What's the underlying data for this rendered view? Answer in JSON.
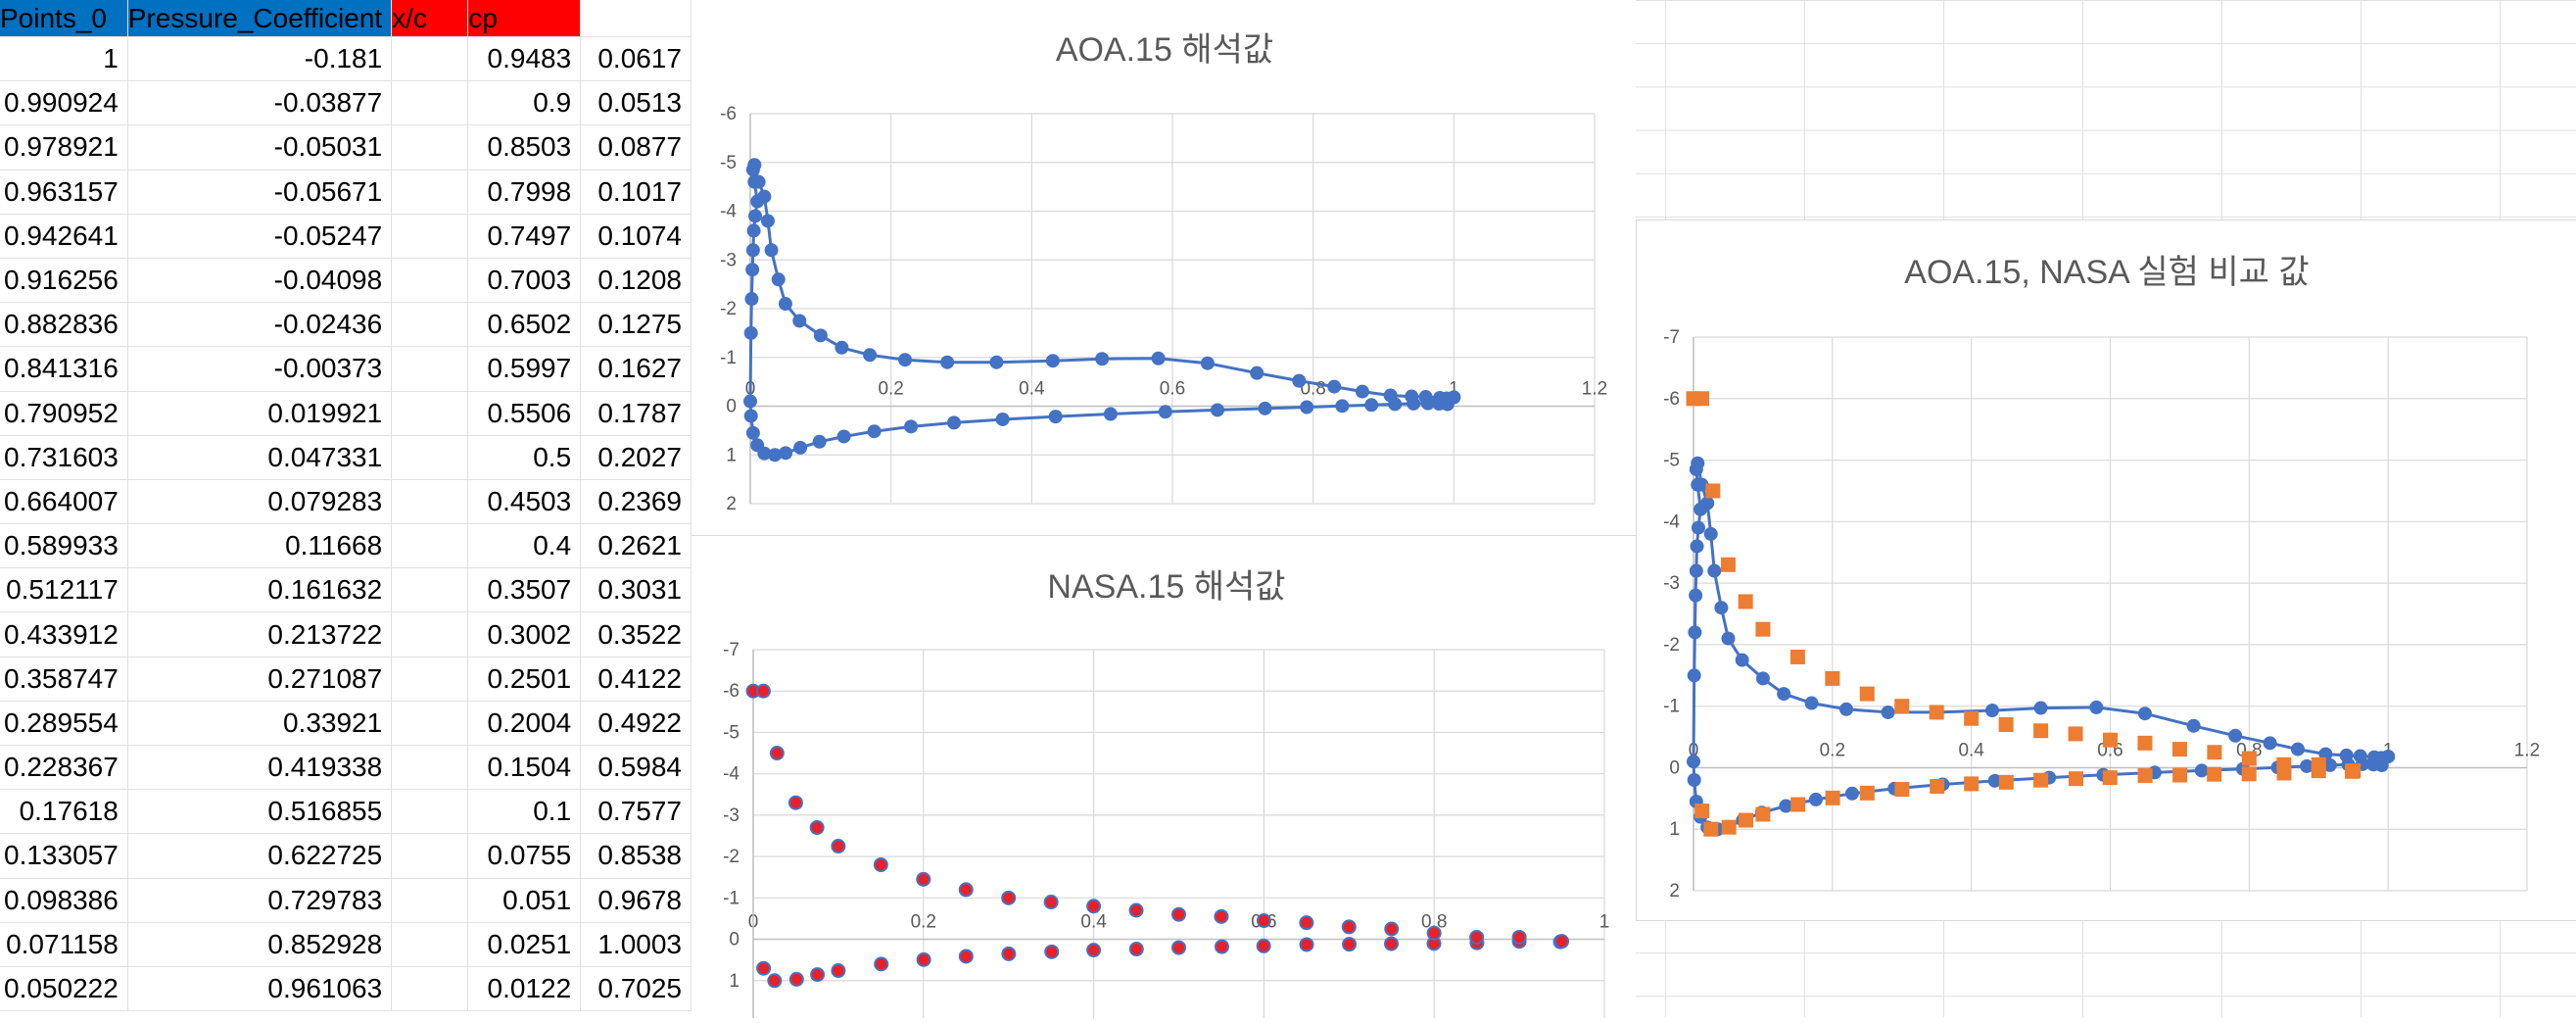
{
  "sheet": {
    "headers": [
      "Points_0",
      "Pressure_Coefficient",
      "x/c",
      "cp"
    ],
    "rows": [
      [
        "1",
        "-0.181",
        "0.9483",
        "0.0617"
      ],
      [
        "0.990924",
        "-0.03877",
        "0.9",
        "0.0513"
      ],
      [
        "0.978921",
        "-0.05031",
        "0.8503",
        "0.0877"
      ],
      [
        "0.963157",
        "-0.05671",
        "0.7998",
        "0.1017"
      ],
      [
        "0.942641",
        "-0.05247",
        "0.7497",
        "0.1074"
      ],
      [
        "0.916256",
        "-0.04098",
        "0.7003",
        "0.1208"
      ],
      [
        "0.882836",
        "-0.02436",
        "0.6502",
        "0.1275"
      ],
      [
        "0.841316",
        "-0.00373",
        "0.5997",
        "0.1627"
      ],
      [
        "0.790952",
        "0.019921",
        "0.5506",
        "0.1787"
      ],
      [
        "0.731603",
        "0.047331",
        "0.5",
        "0.2027"
      ],
      [
        "0.664007",
        "0.079283",
        "0.4503",
        "0.2369"
      ],
      [
        "0.589933",
        "0.11668",
        "0.4",
        "0.2621"
      ],
      [
        "0.512117",
        "0.161632",
        "0.3507",
        "0.3031"
      ],
      [
        "0.433912",
        "0.213722",
        "0.3002",
        "0.3522"
      ],
      [
        "0.358747",
        "0.271087",
        "0.2501",
        "0.4122"
      ],
      [
        "0.289554",
        "0.33921",
        "0.2004",
        "0.4922"
      ],
      [
        "0.228367",
        "0.419338",
        "0.1504",
        "0.5984"
      ],
      [
        "0.17618",
        "0.516855",
        "0.1",
        "0.7577"
      ],
      [
        "0.133057",
        "0.622725",
        "0.0755",
        "0.8538"
      ],
      [
        "0.098386",
        "0.729783",
        "0.051",
        "0.9678"
      ],
      [
        "0.071158",
        "0.852928",
        "0.0251",
        "1.0003"
      ],
      [
        "0.050222",
        "0.961063",
        "0.0122",
        "0.7025"
      ]
    ]
  },
  "colors": {
    "series_blue": "#4472c4",
    "series_orange": "#ed7d31",
    "nasa_marker_fill": "#e8202a",
    "header_blue": "#0070c0",
    "header_red": "#ff0000"
  },
  "chart_data": [
    {
      "type": "scatter",
      "title": "AOA.15 해석값",
      "xlim": [
        0,
        1.2
      ],
      "ylim": [
        2,
        -6
      ],
      "xticks": [
        "0",
        "0.2",
        "0.4",
        "0.6",
        "0.8",
        "1",
        "1.2"
      ],
      "yticks": [
        "-6",
        "-5",
        "-4",
        "-3",
        "-2",
        "-1",
        "0",
        "1",
        "2"
      ],
      "series": [
        {
          "style": "line-markers",
          "points": [
            [
              1,
              -0.181
            ],
            [
              0.990924,
              -0.03877
            ],
            [
              0.978921,
              -0.05031
            ],
            [
              0.963157,
              -0.05671
            ],
            [
              0.942641,
              -0.05247
            ],
            [
              0.916256,
              -0.04098
            ],
            [
              0.882836,
              -0.02436
            ],
            [
              0.841316,
              -0.00373
            ],
            [
              0.790952,
              0.019921
            ],
            [
              0.731603,
              0.047331
            ],
            [
              0.664007,
              0.079283
            ],
            [
              0.589933,
              0.11668
            ],
            [
              0.512117,
              0.161632
            ],
            [
              0.433912,
              0.213722
            ],
            [
              0.358747,
              0.271087
            ],
            [
              0.289554,
              0.33921
            ],
            [
              0.228367,
              0.419338
            ],
            [
              0.17618,
              0.516855
            ],
            [
              0.133057,
              0.622725
            ],
            [
              0.098386,
              0.729783
            ],
            [
              0.071158,
              0.852928
            ],
            [
              0.050222,
              0.961063
            ],
            [
              0.035,
              1.0
            ],
            [
              0.02,
              0.97
            ],
            [
              0.01,
              0.8
            ],
            [
              0.004,
              0.55
            ],
            [
              0.001,
              0.2
            ],
            [
              0,
              -0.1
            ],
            [
              0.001,
              -1.5
            ],
            [
              0.002,
              -2.2
            ],
            [
              0.003,
              -2.8
            ],
            [
              0.004,
              -3.2
            ],
            [
              0.005,
              -3.6
            ],
            [
              0.007,
              -3.9
            ],
            [
              0.01,
              -4.2
            ],
            [
              0.006,
              -4.6
            ],
            [
              0.004,
              -4.85
            ],
            [
              0.006,
              -4.95
            ],
            [
              0.012,
              -4.6
            ],
            [
              0.02,
              -4.3
            ],
            [
              0.025,
              -3.8
            ],
            [
              0.03,
              -3.2
            ],
            [
              0.04,
              -2.6
            ],
            [
              0.05,
              -2.1
            ],
            [
              0.07,
              -1.75
            ],
            [
              0.1,
              -1.45
            ],
            [
              0.13,
              -1.2
            ],
            [
              0.17,
              -1.05
            ],
            [
              0.22,
              -0.95
            ],
            [
              0.28,
              -0.9
            ],
            [
              0.35,
              -0.9
            ],
            [
              0.43,
              -0.93
            ],
            [
              0.5,
              -0.97
            ],
            [
              0.58,
              -0.98
            ],
            [
              0.65,
              -0.88
            ],
            [
              0.72,
              -0.68
            ],
            [
              0.78,
              -0.52
            ],
            [
              0.83,
              -0.4
            ],
            [
              0.87,
              -0.3
            ],
            [
              0.91,
              -0.22
            ],
            [
              0.94,
              -0.2
            ],
            [
              0.96,
              -0.19
            ],
            [
              0.98,
              -0.17
            ],
            [
              0.99,
              -0.16
            ],
            [
              1,
              -0.181
            ]
          ]
        }
      ]
    },
    {
      "type": "scatter",
      "title": "NASA.15 해석값",
      "xlim": [
        0,
        1
      ],
      "ylim": [
        2,
        -7
      ],
      "xticks": [
        "0",
        "0.2",
        "0.4",
        "0.6",
        "0.8",
        "1"
      ],
      "yticks": [
        "-7",
        "-6",
        "-5",
        "-4",
        "-3",
        "-2",
        "-1",
        "0",
        "1"
      ],
      "series": [
        {
          "style": "markers",
          "points": [
            [
              0.9483,
              0.0617
            ],
            [
              0.9,
              0.0513
            ],
            [
              0.8503,
              0.0877
            ],
            [
              0.7998,
              0.1017
            ],
            [
              0.7497,
              0.1074
            ],
            [
              0.7003,
              0.1208
            ],
            [
              0.6502,
              0.1275
            ],
            [
              0.5997,
              0.1627
            ],
            [
              0.5506,
              0.1787
            ],
            [
              0.5,
              0.2027
            ],
            [
              0.4503,
              0.2369
            ],
            [
              0.4,
              0.2621
            ],
            [
              0.3507,
              0.3031
            ],
            [
              0.3002,
              0.3522
            ],
            [
              0.2501,
              0.4122
            ],
            [
              0.2004,
              0.4922
            ],
            [
              0.1504,
              0.5984
            ],
            [
              0.1,
              0.7577
            ],
            [
              0.0755,
              0.8538
            ],
            [
              0.051,
              0.9678
            ],
            [
              0.0251,
              1.0003
            ],
            [
              0.0122,
              0.7025
            ],
            [
              0,
              -6
            ],
            [
              0.012,
              -6
            ],
            [
              0.028,
              -4.5
            ],
            [
              0.05,
              -3.3
            ],
            [
              0.075,
              -2.7
            ],
            [
              0.1,
              -2.25
            ],
            [
              0.15,
              -1.8
            ],
            [
              0.2,
              -1.45
            ],
            [
              0.25,
              -1.2
            ],
            [
              0.3,
              -1.0
            ],
            [
              0.35,
              -0.9
            ],
            [
              0.4,
              -0.8
            ],
            [
              0.45,
              -0.7
            ],
            [
              0.5,
              -0.6
            ],
            [
              0.55,
              -0.55
            ],
            [
              0.6,
              -0.45
            ],
            [
              0.65,
              -0.4
            ],
            [
              0.7,
              -0.3
            ],
            [
              0.75,
              -0.25
            ],
            [
              0.8,
              -0.15
            ],
            [
              0.85,
              -0.05
            ],
            [
              0.9,
              -0.05
            ],
            [
              0.95,
              0.05
            ]
          ]
        }
      ]
    },
    {
      "type": "scatter",
      "title": "AOA.15, NASA 실험 비교 값",
      "xlim": [
        0,
        1.2
      ],
      "ylim": [
        2,
        -7
      ],
      "xticks": [
        "0",
        "0.2",
        "0.4",
        "0.6",
        "0.8",
        "1",
        "1.2"
      ],
      "yticks": [
        "-7",
        "-6",
        "-5",
        "-4",
        "-3",
        "-2",
        "-1",
        "0",
        "1",
        "2"
      ],
      "series": [
        {
          "style": "line-markers",
          "color_key": "series_blue",
          "points": [
            [
              1,
              -0.181
            ],
            [
              0.990924,
              -0.03877
            ],
            [
              0.978921,
              -0.05031
            ],
            [
              0.963157,
              -0.05671
            ],
            [
              0.942641,
              -0.05247
            ],
            [
              0.916256,
              -0.04098
            ],
            [
              0.882836,
              -0.02436
            ],
            [
              0.841316,
              -0.00373
            ],
            [
              0.790952,
              0.019921
            ],
            [
              0.731603,
              0.047331
            ],
            [
              0.664007,
              0.079283
            ],
            [
              0.589933,
              0.11668
            ],
            [
              0.512117,
              0.161632
            ],
            [
              0.433912,
              0.213722
            ],
            [
              0.358747,
              0.271087
            ],
            [
              0.289554,
              0.33921
            ],
            [
              0.228367,
              0.419338
            ],
            [
              0.17618,
              0.516855
            ],
            [
              0.133057,
              0.622725
            ],
            [
              0.098386,
              0.729783
            ],
            [
              0.071158,
              0.852928
            ],
            [
              0.050222,
              0.961063
            ],
            [
              0.035,
              1.0
            ],
            [
              0.02,
              0.97
            ],
            [
              0.01,
              0.8
            ],
            [
              0.004,
              0.55
            ],
            [
              0.001,
              0.2
            ],
            [
              0,
              -0.1
            ],
            [
              0.001,
              -1.5
            ],
            [
              0.002,
              -2.2
            ],
            [
              0.003,
              -2.8
            ],
            [
              0.004,
              -3.2
            ],
            [
              0.005,
              -3.6
            ],
            [
              0.007,
              -3.9
            ],
            [
              0.01,
              -4.2
            ],
            [
              0.006,
              -4.6
            ],
            [
              0.004,
              -4.85
            ],
            [
              0.006,
              -4.95
            ],
            [
              0.012,
              -4.6
            ],
            [
              0.02,
              -4.3
            ],
            [
              0.025,
              -3.8
            ],
            [
              0.03,
              -3.2
            ],
            [
              0.04,
              -2.6
            ],
            [
              0.05,
              -2.1
            ],
            [
              0.07,
              -1.75
            ],
            [
              0.1,
              -1.45
            ],
            [
              0.13,
              -1.2
            ],
            [
              0.17,
              -1.05
            ],
            [
              0.22,
              -0.95
            ],
            [
              0.28,
              -0.9
            ],
            [
              0.35,
              -0.9
            ],
            [
              0.43,
              -0.93
            ],
            [
              0.5,
              -0.97
            ],
            [
              0.58,
              -0.98
            ],
            [
              0.65,
              -0.88
            ],
            [
              0.72,
              -0.68
            ],
            [
              0.78,
              -0.52
            ],
            [
              0.83,
              -0.4
            ],
            [
              0.87,
              -0.3
            ],
            [
              0.91,
              -0.22
            ],
            [
              0.94,
              -0.2
            ],
            [
              0.96,
              -0.19
            ],
            [
              0.98,
              -0.17
            ],
            [
              0.99,
              -0.16
            ],
            [
              1,
              -0.181
            ]
          ]
        },
        {
          "style": "square-markers",
          "color_key": "series_orange",
          "points": [
            [
              0.9483,
              0.0617
            ],
            [
              0.9,
              0.0513
            ],
            [
              0.8503,
              0.0877
            ],
            [
              0.7998,
              0.1017
            ],
            [
              0.7497,
              0.1074
            ],
            [
              0.7003,
              0.1208
            ],
            [
              0.6502,
              0.1275
            ],
            [
              0.5997,
              0.1627
            ],
            [
              0.5506,
              0.1787
            ],
            [
              0.5,
              0.2027
            ],
            [
              0.4503,
              0.2369
            ],
            [
              0.4,
              0.2621
            ],
            [
              0.3507,
              0.3031
            ],
            [
              0.3002,
              0.3522
            ],
            [
              0.2501,
              0.4122
            ],
            [
              0.2004,
              0.4922
            ],
            [
              0.1504,
              0.5984
            ],
            [
              0.1,
              0.7577
            ],
            [
              0.0755,
              0.8538
            ],
            [
              0.051,
              0.9678
            ],
            [
              0.0251,
              1.0003
            ],
            [
              0.0122,
              0.7025
            ],
            [
              0,
              -6
            ],
            [
              0.012,
              -6
            ],
            [
              0.028,
              -4.5
            ],
            [
              0.05,
              -3.3
            ],
            [
              0.075,
              -2.7
            ],
            [
              0.1,
              -2.25
            ],
            [
              0.15,
              -1.8
            ],
            [
              0.2,
              -1.45
            ],
            [
              0.25,
              -1.2
            ],
            [
              0.3,
              -1.0
            ],
            [
              0.35,
              -0.9
            ],
            [
              0.4,
              -0.8
            ],
            [
              0.45,
              -0.7
            ],
            [
              0.5,
              -0.6
            ],
            [
              0.55,
              -0.55
            ],
            [
              0.6,
              -0.45
            ],
            [
              0.65,
              -0.4
            ],
            [
              0.7,
              -0.3
            ],
            [
              0.75,
              -0.25
            ],
            [
              0.8,
              -0.15
            ],
            [
              0.85,
              -0.05
            ],
            [
              0.9,
              -0.05
            ],
            [
              0.95,
              0.05
            ]
          ]
        }
      ]
    }
  ]
}
